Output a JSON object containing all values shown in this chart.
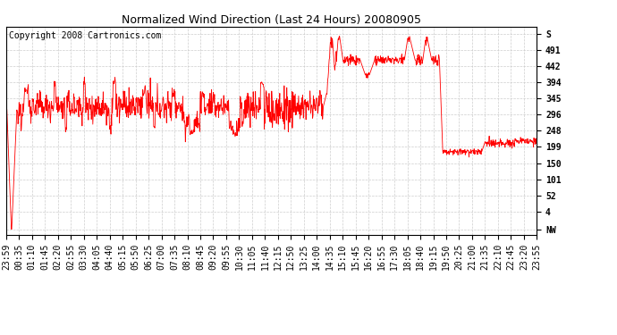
{
  "title": "Normalized Wind Direction (Last 24 Hours) 20080905",
  "copyright_text": "Copyright 2008 Cartronics.com",
  "bg_color": "#ffffff",
  "line_color": "#ff0000",
  "grid_color": "#c8c8c8",
  "ytick_labels": [
    "NW",
    "4",
    "52",
    "101",
    "150",
    "199",
    "248",
    "296",
    "345",
    "394",
    "442",
    "491",
    "S"
  ],
  "ytick_values": [
    -49,
    4,
    52,
    101,
    150,
    199,
    248,
    296,
    345,
    394,
    442,
    491,
    539
  ],
  "ylim": [
    -65,
    560
  ],
  "xtick_labels": [
    "23:59",
    "00:35",
    "01:10",
    "01:45",
    "02:20",
    "02:55",
    "03:30",
    "04:05",
    "04:40",
    "05:15",
    "05:50",
    "06:25",
    "07:00",
    "07:35",
    "08:10",
    "08:45",
    "09:20",
    "09:55",
    "10:30",
    "11:05",
    "11:40",
    "12:15",
    "12:50",
    "13:25",
    "14:00",
    "14:35",
    "15:10",
    "15:45",
    "16:20",
    "16:55",
    "17:30",
    "18:05",
    "18:40",
    "19:15",
    "19:50",
    "20:25",
    "21:00",
    "21:35",
    "22:10",
    "22:45",
    "23:20",
    "23:55"
  ],
  "num_points": 1440,
  "base_value": 320,
  "base_noise": 22,
  "title_fontsize": 9,
  "tick_fontsize": 7,
  "copyright_fontsize": 7
}
